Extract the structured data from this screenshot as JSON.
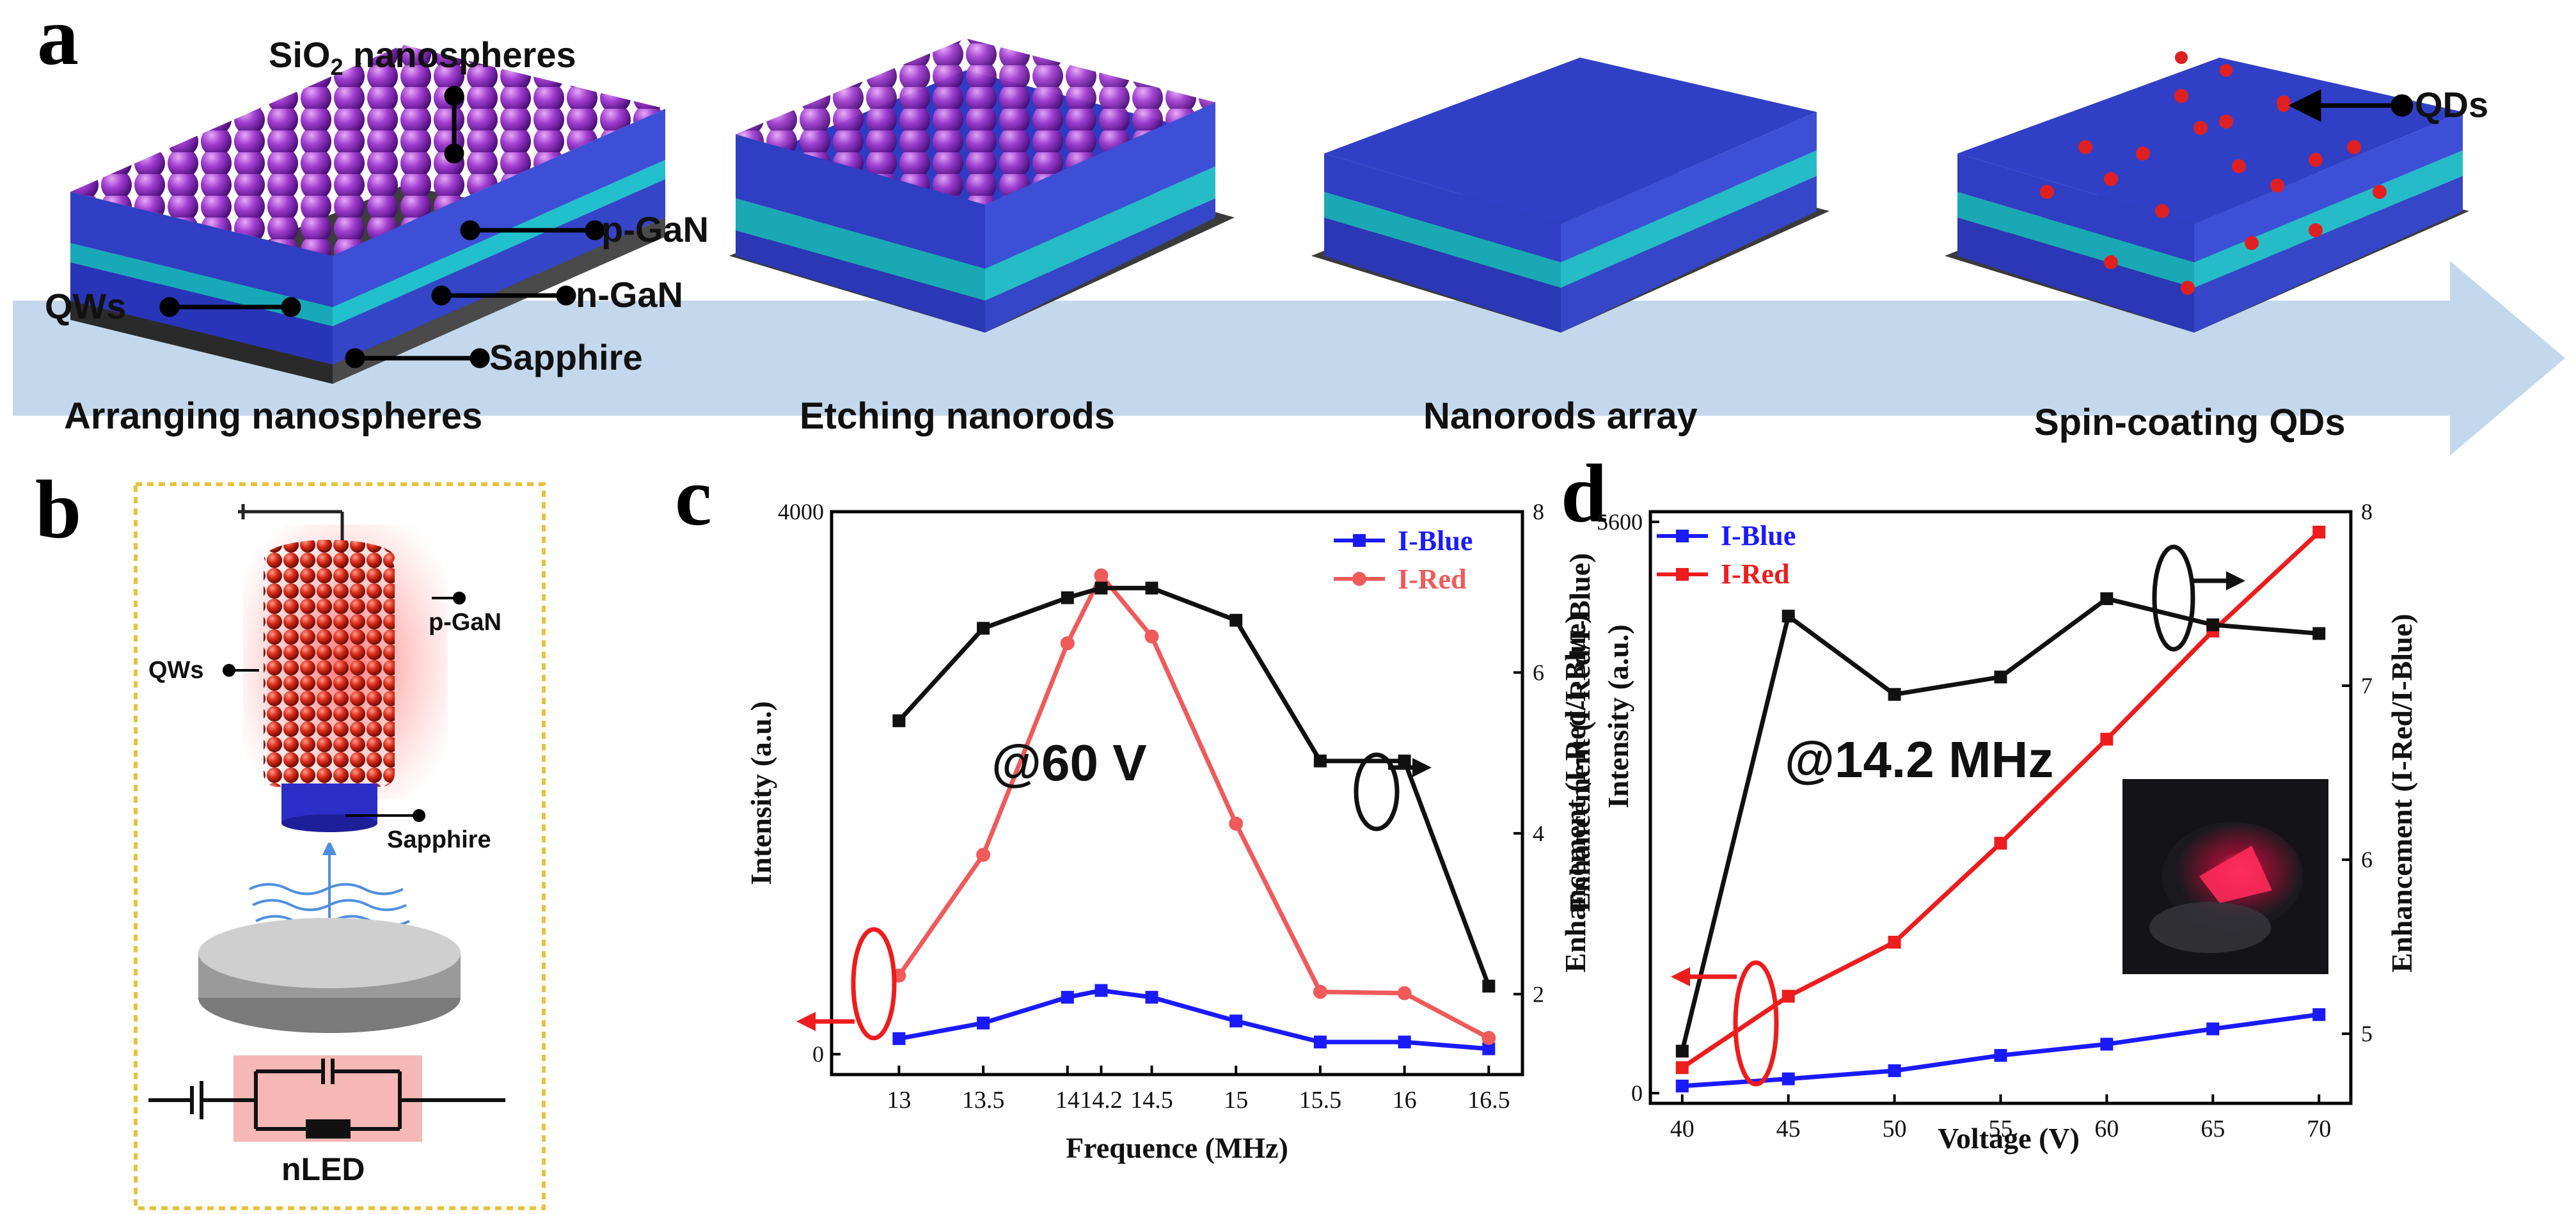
{
  "panel_a": {
    "letter": "a",
    "labels": {
      "sio2_prefix": "SiO",
      "sio2_sub": "2",
      "sio2_suffix": " nanospheres",
      "p_gan": "p-GaN",
      "qws": "QWs",
      "n_gan": "n-GaN",
      "sapphire": "Sapphire",
      "qds": "QDs"
    },
    "steps": [
      "Arranging nanospheres",
      "Etching nanorods",
      "Nanorods array",
      "Spin-coating QDs"
    ]
  },
  "panel_b": {
    "letter": "b",
    "labels": {
      "p_gan": "p-GaN",
      "qws": "QWs",
      "sapphire": "Sapphire",
      "nled": "nLED"
    }
  },
  "panel_c": {
    "letter": "c",
    "annotation": "@60 V"
  },
  "panel_d": {
    "letter": "d",
    "annotation": "@14.2 MHz"
  },
  "chart_data": [
    {
      "type": "line",
      "id": "c",
      "title": "",
      "xlabel": "Frequence (MHz)",
      "ylabel": "Intensity (a.u.)",
      "ylabel_right": "Enhancement (I-Red/I-Blue)",
      "x": [
        13,
        13.5,
        14,
        14.2,
        14.5,
        15,
        15.5,
        16,
        16.5
      ],
      "xticks": [
        "13",
        "13.5",
        "14",
        "14.2",
        "14.5",
        "15",
        "15.5",
        "16",
        "16.5"
      ],
      "xlim": [
        12.6,
        16.7
      ],
      "ylim": [
        -150,
        4000
      ],
      "yticks": [
        "0",
        "4000"
      ],
      "ylim_right": [
        1.0,
        8.0
      ],
      "yticks_right": [
        "2",
        "4",
        "6",
        "8"
      ],
      "series": [
        {
          "name": "I-Blue",
          "axis": "left",
          "color": "#1a1aff",
          "marker": "square",
          "values": [
            115,
            230,
            420,
            470,
            420,
            245,
            90,
            90,
            40
          ]
        },
        {
          "name": "I-Red",
          "axis": "left",
          "color": "#f05a5a",
          "marker": "circle",
          "values": [
            580,
            1470,
            3030,
            3530,
            3080,
            1700,
            460,
            450,
            120
          ]
        },
        {
          "name": "Enhancement",
          "axis": "right",
          "color": "#111111",
          "marker": "square",
          "legend": false,
          "values": [
            5.4,
            6.55,
            6.93,
            7.05,
            7.05,
            6.65,
            4.9,
            4.9,
            2.1
          ]
        }
      ]
    },
    {
      "type": "line",
      "id": "d",
      "title": "",
      "xlabel": "Voltage (V)",
      "ylabel": "Intensity (a.u.)",
      "ylabel_right": "Enhancement (I-Red/I-Blue)",
      "x": [
        40,
        45,
        50,
        55,
        60,
        65,
        70
      ],
      "xticks": [
        "40",
        "45",
        "50",
        "55",
        "60",
        "65",
        "70"
      ],
      "xlim": [
        38.5,
        71.5
      ],
      "ylim": [
        -100,
        5700
      ],
      "yticks": [
        "0",
        "5600"
      ],
      "ylim_right": [
        4.6,
        8.0
      ],
      "yticks_right": [
        "5",
        "6",
        "7",
        "8"
      ],
      "series": [
        {
          "name": "I-Blue",
          "axis": "left",
          "color": "#1a1aff",
          "marker": "square",
          "values": [
            70,
            140,
            220,
            370,
            480,
            630,
            770
          ]
        },
        {
          "name": "I-Red",
          "axis": "left",
          "color": "#ee1c1c",
          "marker": "square",
          "values": [
            250,
            950,
            1480,
            2450,
            3470,
            4530,
            5500
          ]
        },
        {
          "name": "Enhancement",
          "axis": "right",
          "color": "#111111",
          "marker": "square",
          "legend": false,
          "values": [
            4.9,
            7.4,
            6.95,
            7.05,
            7.5,
            7.35,
            7.3
          ]
        }
      ]
    }
  ]
}
